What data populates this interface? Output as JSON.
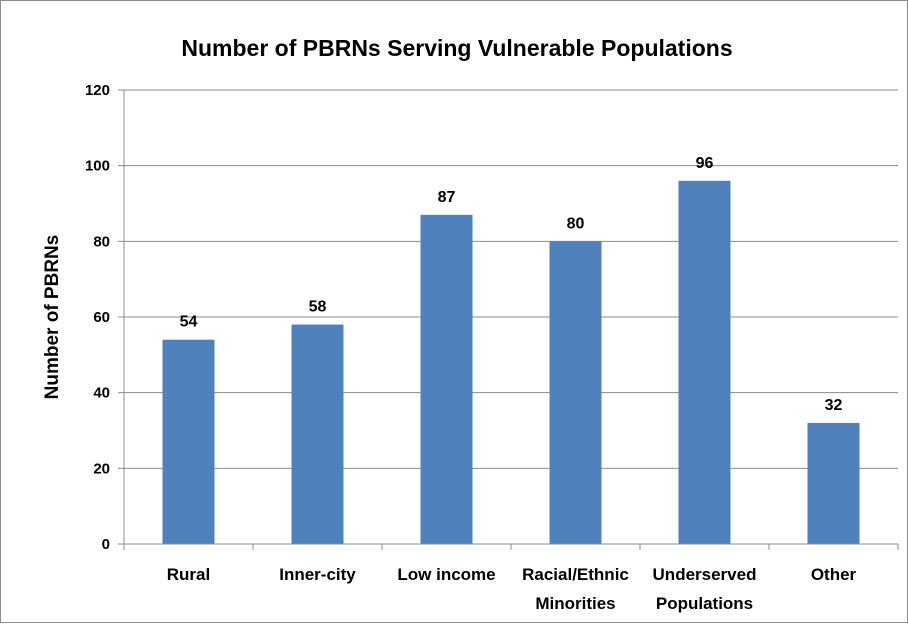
{
  "chart_data": {
    "type": "bar",
    "title": "Number of PBRNs Serving Vulnerable Populations",
    "xlabel": "",
    "ylabel": "Number of PBRNs",
    "categories": [
      [
        "Rural"
      ],
      [
        "Inner-city"
      ],
      [
        "Low income"
      ],
      [
        "Racial/Ethnic",
        "Minorities"
      ],
      [
        "Underserved",
        "Populations"
      ],
      [
        "Other"
      ]
    ],
    "values": [
      54,
      58,
      87,
      80,
      96,
      32
    ],
    "data_labels": [
      "54",
      "58",
      "87",
      "80",
      "96",
      "32"
    ],
    "ylim": [
      0,
      120
    ],
    "yticks": [
      "0",
      "20",
      "40",
      "60",
      "80",
      "100",
      "120"
    ],
    "grid": true,
    "legend": "none",
    "bar_color": "#4f81bd",
    "grid_color": "#8c8c8c"
  }
}
